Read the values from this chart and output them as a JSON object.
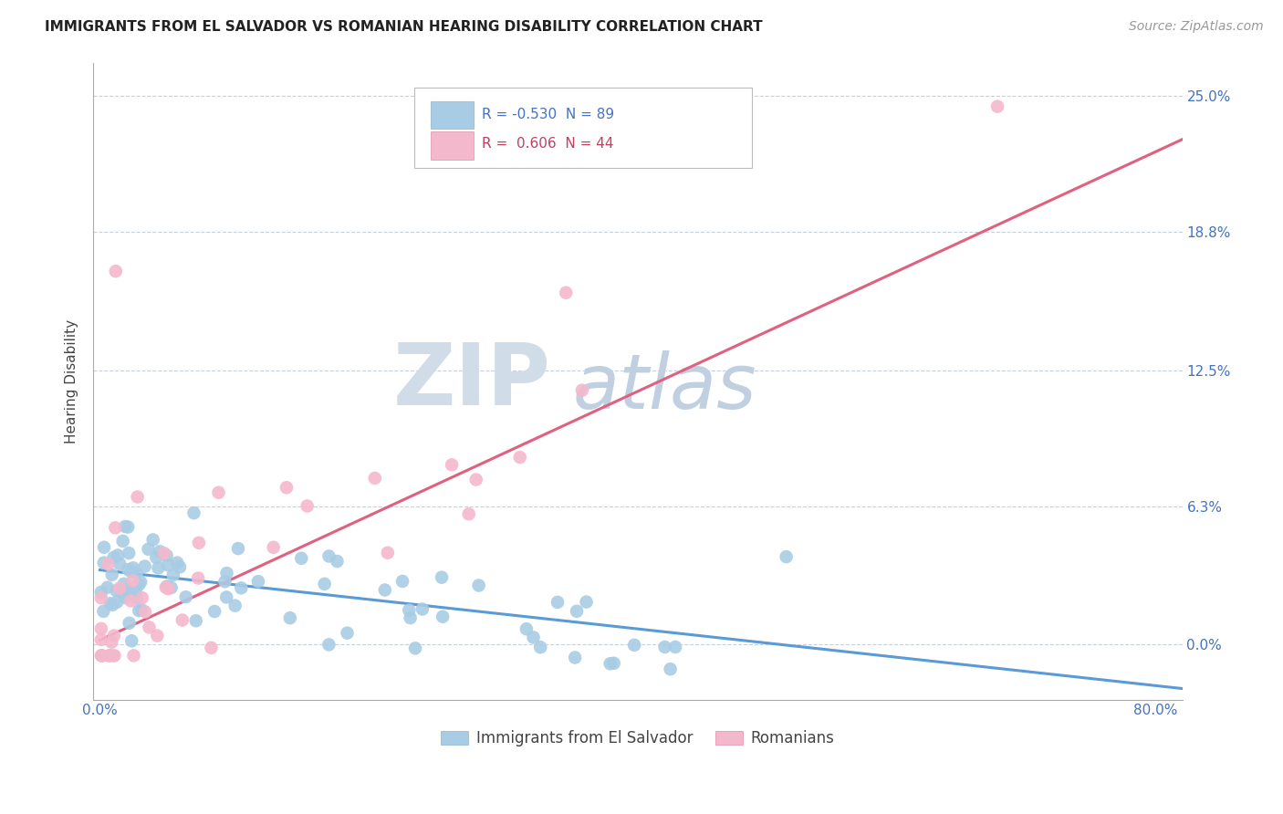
{
  "title": "IMMIGRANTS FROM EL SALVADOR VS ROMANIAN HEARING DISABILITY CORRELATION CHART",
  "source": "Source: ZipAtlas.com",
  "ylabel": "Hearing Disability",
  "xlim": [
    -0.005,
    0.82
  ],
  "ylim": [
    -0.025,
    0.265
  ],
  "xtick_positions": [
    0.0,
    0.8
  ],
  "xticklabels": [
    "0.0%",
    "80.0%"
  ],
  "yticks": [
    0.0,
    0.063,
    0.125,
    0.188,
    0.25
  ],
  "yticklabels": [
    "0.0%",
    "6.3%",
    "12.5%",
    "18.8%",
    "25.0%"
  ],
  "legend_blue_r": "-0.530",
  "legend_blue_n": "89",
  "legend_pink_r": "0.606",
  "legend_pink_n": "44",
  "blue_color": "#a8cce4",
  "pink_color": "#f4b8cc",
  "trendline_blue_color": "#5b9bd5",
  "trendline_pink_color": "#e06080",
  "axis_label_color": "#4472c4",
  "grid_color": "#c8d0d8",
  "watermark_zip_color": "#d0dce8",
  "watermark_atlas_color": "#c0d0e0",
  "title_fontsize": 11,
  "source_fontsize": 10,
  "legend_label_color_blue": "#4472c4",
  "legend_label_color_pink": "#c04060"
}
